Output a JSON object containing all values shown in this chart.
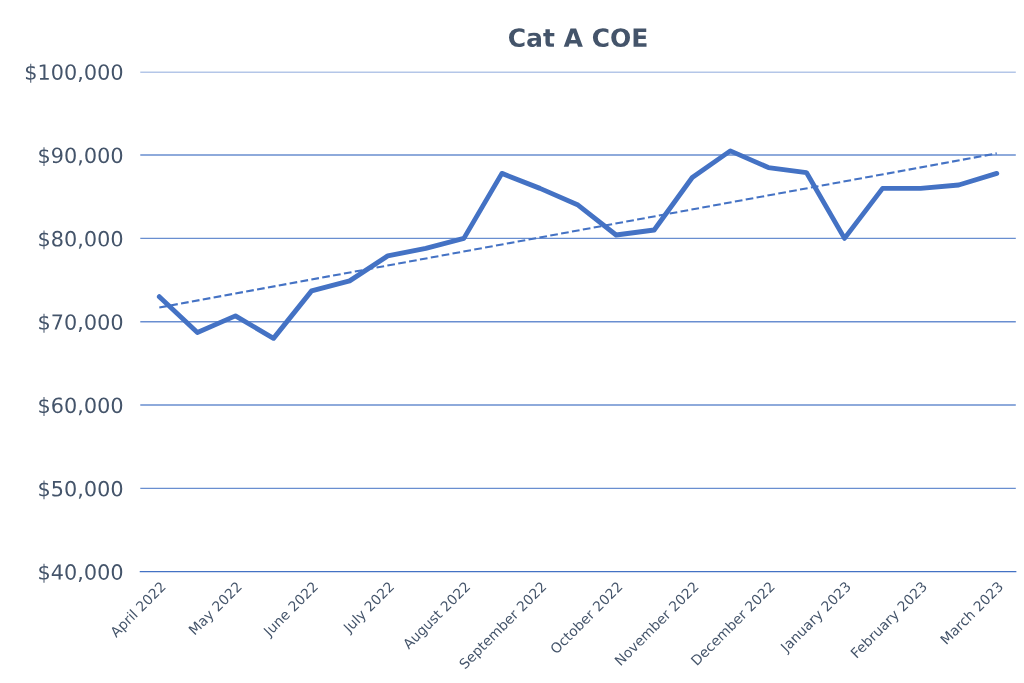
{
  "chart_data": {
    "type": "line",
    "title": "Cat A COE",
    "categories": [
      "April 2022",
      null,
      "May 2022",
      null,
      "June 2022",
      null,
      "July 2022",
      null,
      "August 2022",
      null,
      "September 2022",
      null,
      "October 2022",
      null,
      "November 2022",
      null,
      "December 2022",
      null,
      "January 2023",
      null,
      "February 2023",
      null,
      "March 2023"
    ],
    "series": [
      {
        "color": "#4472c4",
        "line_style": "solid",
        "values": [
          73000,
          68700,
          70700,
          68000,
          73700,
          74900,
          77900,
          78800,
          80000,
          87800,
          86000,
          84000,
          80400,
          81000,
          87300,
          90500,
          88500,
          87900,
          80000,
          86000,
          86000,
          86400,
          87800
        ]
      },
      {
        "type": "line",
        "color": "#4472c4",
        "line_style": "dashed",
        "x": [
          "April 2022",
          "March 2023"
        ],
        "values": [
          71700,
          90200
        ]
      }
    ],
    "ylim": [
      40000,
      100000
    ],
    "yticks": [
      {
        "value": 40000,
        "label": "$40,000"
      },
      {
        "value": 50000,
        "label": "$50,000"
      },
      {
        "value": 60000,
        "label": "$60,000"
      },
      {
        "value": 70000,
        "label": "$70,000"
      },
      {
        "value": 80000,
        "label": "$80,000"
      },
      {
        "value": 90000,
        "label": "$90,000"
      },
      {
        "value": 100000,
        "label": "$100,000"
      }
    ],
    "grid": "y"
  }
}
